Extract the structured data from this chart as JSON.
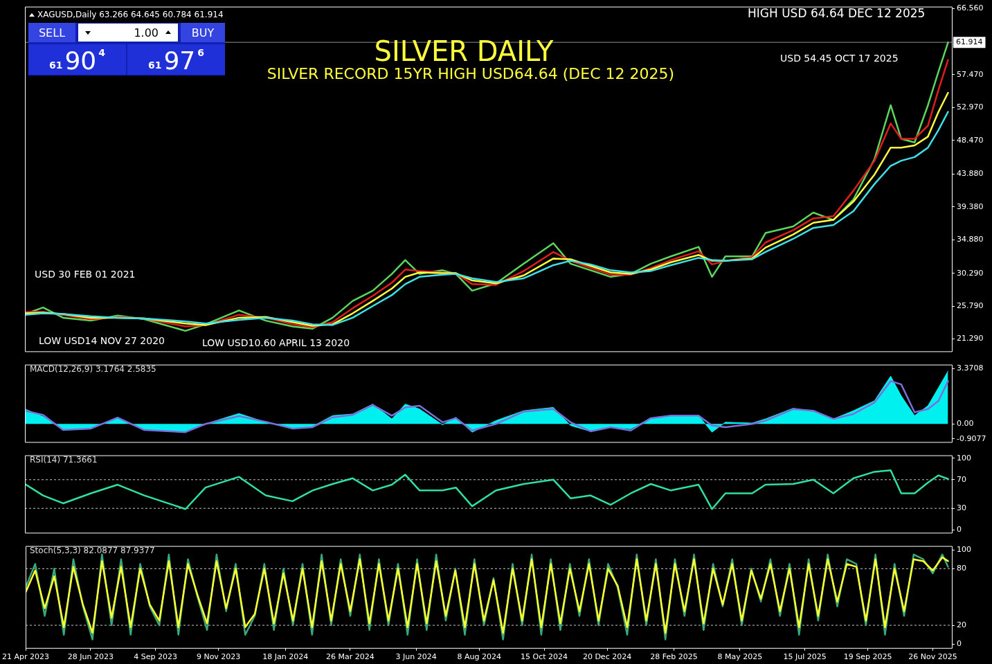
{
  "chart_data": [
    {
      "type": "line",
      "title": "SILVER DAILY",
      "subtitle": "SILVER RECORD 15YR  HIGH USD64.64  (DEC 12 2025)",
      "annotations": [
        "XAGUSD,Daily  63.266 64.645 60.784 61.914",
        "SELL",
        "1.00",
        "BUY",
        "61",
        "90",
        "4",
        "61",
        "97",
        "6",
        "HIGH USD 64.64 DEC 12 2025",
        "USD 54.45 OCT 17 2025",
        "USD 30 FEB 01 2021",
        "LOW USD14 NOV 27 2020",
        "LOW USD10.60 APRIL 13 2020"
      ],
      "x": [
        "2023-04-21",
        "2023-05-10",
        "2023-05-31",
        "2023-06-29",
        "2023-07-27",
        "2023-08-24",
        "2023-10-06",
        "2023-10-27",
        "2023-12-01",
        "2023-12-29",
        "2024-01-26",
        "2024-02-16",
        "2024-03-08",
        "2024-03-29",
        "2024-04-19",
        "2024-05-09",
        "2024-05-23",
        "2024-06-07",
        "2024-07-01",
        "2024-07-15",
        "2024-08-01",
        "2024-08-26",
        "2024-09-24",
        "2024-10-25",
        "2024-11-12",
        "2024-12-03",
        "2024-12-24",
        "2025-01-14",
        "2025-02-04",
        "2025-02-25",
        "2025-03-26",
        "2025-04-09",
        "2025-04-23",
        "2025-05-21",
        "2025-06-04",
        "2025-07-03",
        "2025-07-24",
        "2025-08-14",
        "2025-09-04",
        "2025-09-26",
        "2025-10-13",
        "2025-10-24",
        "2025-11-07",
        "2025-11-21",
        "2025-12-02",
        "2025-12-12"
      ],
      "xlim": [
        "2023-04-21",
        "2025-12-16"
      ],
      "ylim": [
        19.6,
        66.8
      ],
      "yticks": [
        {
          "value": 21.29,
          "label": "21.290"
        },
        {
          "value": 25.79,
          "label": "25.790"
        },
        {
          "value": 30.29,
          "label": "30.290"
        },
        {
          "value": 34.88,
          "label": "34.880"
        },
        {
          "value": 39.38,
          "label": "39.380"
        },
        {
          "value": 43.88,
          "label": "43.880"
        },
        {
          "value": 48.47,
          "label": "48.470"
        },
        {
          "value": 52.97,
          "label": "52.970"
        },
        {
          "value": 57.47,
          "label": "57.470"
        },
        {
          "value": 66.56,
          "label": "66.560"
        }
      ],
      "ref_lines": [
        {
          "axis": "y",
          "value": 61.914,
          "label": "61.914",
          "color": "#909090",
          "line_style": "solid"
        }
      ],
      "tick_labels": "y",
      "series": [
        {
          "color": "#5cd65c",
          "values": [
            24.7,
            25.6,
            24.2,
            23.8,
            24.5,
            24.0,
            22.4,
            23.3,
            25.2,
            23.8,
            23.0,
            22.7,
            24.2,
            26.5,
            27.9,
            30.2,
            32.1,
            30.2,
            30.7,
            30.2,
            27.9,
            28.9,
            31.6,
            34.4,
            31.6,
            30.7,
            29.8,
            30.2,
            31.6,
            32.6,
            33.9,
            29.8,
            32.6,
            32.6,
            35.8,
            36.7,
            38.6,
            37.6,
            40.4,
            45.9,
            53.3,
            48.7,
            48.2,
            53.3,
            57.9,
            61.9
          ]
        },
        {
          "color": "#e01e1e",
          "values": [
            25.0,
            25.0,
            24.6,
            24.0,
            24.3,
            24.1,
            23.0,
            23.2,
            24.6,
            24.2,
            23.3,
            22.9,
            23.6,
            25.5,
            27.2,
            29.0,
            30.8,
            30.6,
            30.4,
            30.3,
            28.8,
            28.7,
            30.6,
            33.2,
            32.0,
            31.0,
            30.1,
            30.1,
            31.0,
            32.1,
            33.3,
            31.5,
            32.0,
            32.5,
            34.5,
            36.2,
            37.8,
            38.1,
            41.6,
            45.7,
            50.8,
            48.7,
            48.7,
            50.5,
            55.4,
            59.5
          ]
        },
        {
          "color": "#ffff40",
          "values": [
            24.8,
            24.9,
            24.7,
            24.2,
            24.2,
            24.1,
            23.4,
            23.2,
            24.2,
            24.3,
            23.6,
            23.1,
            23.3,
            24.8,
            26.5,
            28.2,
            29.8,
            30.4,
            30.3,
            30.3,
            29.3,
            28.9,
            30.0,
            32.3,
            32.2,
            31.3,
            30.4,
            30.2,
            30.8,
            31.8,
            32.8,
            32.0,
            32.0,
            32.3,
            33.8,
            35.6,
            37.2,
            37.6,
            40.1,
            43.8,
            47.5,
            47.5,
            47.8,
            49.0,
            52.4,
            55.0
          ]
        },
        {
          "color": "#40e0e8",
          "values": [
            24.6,
            24.8,
            24.7,
            24.4,
            24.2,
            24.1,
            23.7,
            23.4,
            23.9,
            24.2,
            23.8,
            23.3,
            23.2,
            24.2,
            25.8,
            27.3,
            28.8,
            29.8,
            30.1,
            30.2,
            29.6,
            29.1,
            29.6,
            31.4,
            32.0,
            31.5,
            30.7,
            30.4,
            30.6,
            31.4,
            32.4,
            32.1,
            32.0,
            32.2,
            33.2,
            35.0,
            36.5,
            36.9,
            38.8,
            42.5,
            45.0,
            45.7,
            46.2,
            47.5,
            49.9,
            52.4
          ]
        }
      ]
    },
    {
      "type": "line",
      "title": "MACD(12,26,9) 3.1764 2.5835",
      "x": [
        "2023-04-21",
        "2023-05-10",
        "2023-05-31",
        "2023-06-29",
        "2023-07-27",
        "2023-08-24",
        "2023-10-06",
        "2023-10-27",
        "2023-12-01",
        "2023-12-29",
        "2024-01-26",
        "2024-02-16",
        "2024-03-08",
        "2024-03-29",
        "2024-04-19",
        "2024-05-09",
        "2024-05-23",
        "2024-06-07",
        "2024-07-01",
        "2024-07-15",
        "2024-08-01",
        "2024-08-26",
        "2024-09-24",
        "2024-10-25",
        "2024-11-12",
        "2024-12-03",
        "2024-12-24",
        "2025-01-14",
        "2025-02-04",
        "2025-02-25",
        "2025-03-26",
        "2025-04-09",
        "2025-04-23",
        "2025-05-21",
        "2025-06-04",
        "2025-07-03",
        "2025-07-24",
        "2025-08-14",
        "2025-09-04",
        "2025-09-26",
        "2025-10-13",
        "2025-10-24",
        "2025-11-07",
        "2025-11-21",
        "2025-12-02",
        "2025-12-12"
      ],
      "xlim": [
        "2023-04-21",
        "2025-12-16"
      ],
      "ylim": [
        -1.1,
        3.6
      ],
      "yticks": [
        {
          "value": 3.3708,
          "label": "3.3708"
        },
        {
          "value": 0,
          "label": "0.00"
        },
        {
          "value": -0.9077,
          "label": "-0.9077"
        }
      ],
      "tick_labels": "y",
      "series": [
        {
          "type": "area",
          "color": "#00f0f0",
          "values": [
            0.9,
            0.45,
            -0.37,
            -0.3,
            0.38,
            -0.35,
            -0.5,
            0.0,
            0.63,
            0.1,
            -0.3,
            -0.15,
            0.5,
            0.6,
            1.2,
            0.3,
            1.2,
            0.9,
            -0.05,
            0.4,
            -0.5,
            0.2,
            0.8,
            1.0,
            -0.1,
            -0.45,
            -0.2,
            -0.3,
            0.35,
            0.5,
            0.5,
            -0.5,
            0.1,
            0.05,
            0.3,
            0.95,
            0.75,
            0.3,
            0.8,
            1.4,
            2.9,
            1.7,
            0.5,
            1.1,
            2.2,
            3.2
          ]
        },
        {
          "type": "line",
          "color": "#7a6fd8",
          "values": [
            0.8,
            0.55,
            -0.37,
            -0.28,
            0.38,
            -0.37,
            -0.5,
            0.0,
            0.47,
            0.13,
            -0.28,
            -0.2,
            0.4,
            0.55,
            1.15,
            0.5,
            1.0,
            1.1,
            0.1,
            0.35,
            -0.4,
            0.0,
            0.75,
            0.9,
            0.1,
            -0.45,
            -0.2,
            -0.4,
            0.35,
            0.5,
            0.5,
            -0.1,
            -0.2,
            0.0,
            0.2,
            0.9,
            0.8,
            0.3,
            0.6,
            1.3,
            2.6,
            2.4,
            0.7,
            0.9,
            1.4,
            2.6
          ]
        }
      ]
    },
    {
      "type": "line",
      "title": "RSI(14) 71.3661",
      "x": [
        "2023-04-21",
        "2023-05-10",
        "2023-05-31",
        "2023-06-29",
        "2023-07-27",
        "2023-08-24",
        "2023-10-06",
        "2023-10-27",
        "2023-12-01",
        "2023-12-29",
        "2024-01-26",
        "2024-02-16",
        "2024-03-08",
        "2024-03-29",
        "2024-04-19",
        "2024-05-09",
        "2024-05-23",
        "2024-06-07",
        "2024-07-01",
        "2024-07-15",
        "2024-08-01",
        "2024-08-26",
        "2024-09-24",
        "2024-10-25",
        "2024-11-12",
        "2024-12-03",
        "2024-12-24",
        "2025-01-14",
        "2025-02-04",
        "2025-02-25",
        "2025-03-26",
        "2025-04-09",
        "2025-04-23",
        "2025-05-21",
        "2025-06-04",
        "2025-07-03",
        "2025-07-24",
        "2025-08-14",
        "2025-09-04",
        "2025-09-26",
        "2025-10-13",
        "2025-10-24",
        "2025-11-07",
        "2025-11-21",
        "2025-12-02",
        "2025-12-12"
      ],
      "xlim": [
        "2023-04-21",
        "2025-12-16"
      ],
      "ylim": [
        -4,
        104
      ],
      "yticks": [
        100,
        70,
        30,
        0
      ],
      "ref_lines": [
        {
          "axis": "y",
          "value": 70,
          "color": "#c8c8c8",
          "line_style": "dashed"
        },
        {
          "axis": "y",
          "value": 30,
          "color": "#c8c8c8",
          "line_style": "dashed"
        }
      ],
      "tick_labels": "y",
      "series": [
        {
          "color": "#30e0a0",
          "values": [
            64,
            48,
            37,
            51,
            63,
            48,
            29,
            59,
            74,
            48,
            40,
            55,
            64,
            72,
            55,
            63,
            77,
            55,
            55,
            59,
            33,
            55,
            64,
            70,
            44,
            48,
            35,
            51,
            64,
            55,
            63,
            29,
            51,
            51,
            63,
            64,
            70,
            51,
            72,
            81,
            83,
            51,
            51,
            66,
            76,
            71
          ]
        }
      ]
    },
    {
      "type": "line",
      "title": "Stoch(5,3,3) 82.0877 87.9377",
      "x": [
        "2023-04-21",
        "2023-05-01",
        "2023-05-11",
        "2023-05-21",
        "2023-05-31",
        "2023-06-10",
        "2023-06-20",
        "2023-06-30",
        "2023-07-10",
        "2023-07-20",
        "2023-07-30",
        "2023-08-09",
        "2023-08-19",
        "2023-08-29",
        "2023-09-08",
        "2023-09-18",
        "2023-09-28",
        "2023-10-08",
        "2023-10-18",
        "2023-10-28",
        "2023-11-07",
        "2023-11-17",
        "2023-11-27",
        "2023-12-07",
        "2023-12-17",
        "2023-12-27",
        "2024-01-06",
        "2024-01-16",
        "2024-01-26",
        "2024-02-05",
        "2024-02-15",
        "2024-02-25",
        "2024-03-06",
        "2024-03-16",
        "2024-03-26",
        "2024-04-05",
        "2024-04-15",
        "2024-04-25",
        "2024-05-05",
        "2024-05-15",
        "2024-05-25",
        "2024-06-04",
        "2024-06-14",
        "2024-06-24",
        "2024-07-04",
        "2024-07-14",
        "2024-07-24",
        "2024-08-03",
        "2024-08-13",
        "2024-08-23",
        "2024-09-02",
        "2024-09-12",
        "2024-09-22",
        "2024-10-02",
        "2024-10-12",
        "2024-10-22",
        "2024-11-01",
        "2024-11-11",
        "2024-11-21",
        "2024-12-01",
        "2024-12-11",
        "2024-12-21",
        "2024-12-31",
        "2025-01-10",
        "2025-01-20",
        "2025-01-30",
        "2025-02-09",
        "2025-02-19",
        "2025-03-01",
        "2025-03-11",
        "2025-03-21",
        "2025-03-31",
        "2025-04-10",
        "2025-04-20",
        "2025-04-30",
        "2025-05-10",
        "2025-05-20",
        "2025-05-30",
        "2025-06-09",
        "2025-06-19",
        "2025-06-29",
        "2025-07-09",
        "2025-07-19",
        "2025-07-29",
        "2025-08-08",
        "2025-08-18",
        "2025-08-28",
        "2025-09-07",
        "2025-09-17",
        "2025-09-27",
        "2025-10-07",
        "2025-10-17",
        "2025-10-27",
        "2025-11-06",
        "2025-11-16",
        "2025-11-26",
        "2025-12-06",
        "2025-12-12"
      ],
      "xlim": [
        "2023-04-21",
        "2025-12-16"
      ],
      "ylim": [
        -4,
        104
      ],
      "yticks": [
        100,
        80,
        20,
        0
      ],
      "xticks": [
        {
          "value": "2023-04-21",
          "label": "21 Apr 2023"
        },
        {
          "value": "2023-06-28",
          "label": "28 Jun 2023"
        },
        {
          "value": "2023-09-04",
          "label": "4 Sep 2023"
        },
        {
          "value": "2023-11-09",
          "label": "9 Nov 2023"
        },
        {
          "value": "2024-01-18",
          "label": "18 Jan 2024"
        },
        {
          "value": "2024-03-26",
          "label": "26 Mar 2024"
        },
        {
          "value": "2024-06-03",
          "label": "3 Jun 2024"
        },
        {
          "value": "2024-08-08",
          "label": "8 Aug 2024"
        },
        {
          "value": "2024-10-15",
          "label": "15 Oct 2024"
        },
        {
          "value": "2024-12-20",
          "label": "20 Dec 2024"
        },
        {
          "value": "2025-02-28",
          "label": "28 Feb 2025"
        },
        {
          "value": "2025-05-08",
          "label": "8 May 2025"
        },
        {
          "value": "2025-07-15",
          "label": "15 Jul 2025"
        },
        {
          "value": "2025-09-19",
          "label": "19 Sep 2025"
        },
        {
          "value": "2025-11-26",
          "label": "26 Nov 2025"
        }
      ],
      "ref_lines": [
        {
          "axis": "y",
          "value": 80,
          "color": "#c8c8c8",
          "line_style": "dashed"
        },
        {
          "axis": "y",
          "value": 20,
          "color": "#c8c8c8",
          "line_style": "dashed"
        }
      ],
      "series": [
        {
          "color": "#3aa87a",
          "values": [
            60,
            85,
            30,
            80,
            10,
            90,
            40,
            5,
            95,
            20,
            90,
            10,
            85,
            40,
            20,
            95,
            10,
            90,
            50,
            15,
            95,
            35,
            85,
            10,
            30,
            85,
            15,
            80,
            20,
            85,
            10,
            95,
            20,
            90,
            30,
            95,
            15,
            90,
            20,
            85,
            10,
            90,
            15,
            95,
            25,
            80,
            10,
            90,
            20,
            70,
            5,
            85,
            20,
            95,
            10,
            90,
            15,
            85,
            30,
            90,
            20,
            85,
            60,
            10,
            95,
            20,
            90,
            5,
            90,
            30,
            95,
            15,
            85,
            40,
            90,
            20,
            80,
            45,
            90,
            30,
            85,
            10,
            90,
            25,
            95,
            40,
            90,
            85,
            20,
            95,
            10,
            85,
            30,
            95,
            90,
            75,
            95,
            82
          ]
        },
        {
          "color": "#ffff30",
          "values": [
            55,
            78,
            38,
            72,
            18,
            82,
            42,
            12,
            88,
            28,
            82,
            18,
            80,
            42,
            25,
            88,
            18,
            85,
            52,
            22,
            88,
            38,
            80,
            18,
            32,
            80,
            22,
            75,
            25,
            80,
            18,
            88,
            25,
            85,
            35,
            90,
            22,
            85,
            25,
            80,
            18,
            85,
            22,
            88,
            30,
            78,
            18,
            85,
            25,
            68,
            12,
            80,
            25,
            90,
            18,
            85,
            22,
            80,
            35,
            85,
            25,
            80,
            62,
            18,
            90,
            25,
            85,
            12,
            85,
            35,
            90,
            22,
            80,
            42,
            85,
            25,
            78,
            48,
            85,
            35,
            80,
            18,
            85,
            30,
            90,
            45,
            85,
            82,
            25,
            90,
            18,
            80,
            35,
            90,
            88,
            78,
            92,
            88
          ]
        }
      ]
    }
  ]
}
